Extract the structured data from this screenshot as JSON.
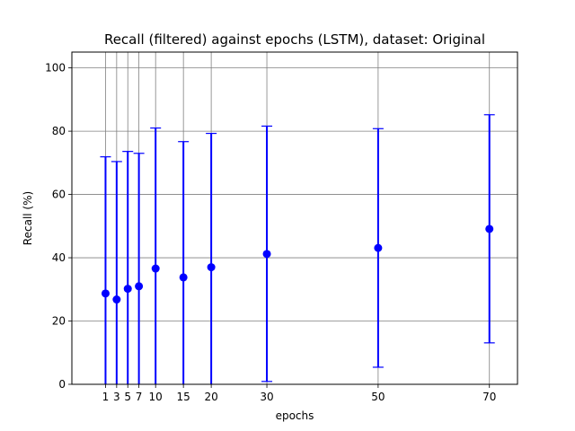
{
  "chart_data": {
    "type": "scatter",
    "title": "Recall (filtered) against epochs (LSTM), dataset: Original",
    "xlabel": "epochs",
    "ylabel": "Recall (%)",
    "xlim": [
      -5.05,
      75.05
    ],
    "ylim": [
      0,
      105
    ],
    "grid": true,
    "xticks": [
      1,
      3,
      5,
      7,
      10,
      15,
      20,
      30,
      50,
      70
    ],
    "yticks": [
      0,
      20,
      40,
      60,
      80,
      100
    ],
    "colors": {
      "marker": "#0000ff",
      "grid": "#808080",
      "axis": "#000000"
    },
    "series": [
      {
        "marker": "circle",
        "x": [
          1,
          3,
          5,
          7,
          10,
          15,
          20,
          30,
          50,
          70
        ],
        "y": [
          28.7,
          26.8,
          30.2,
          31.0,
          36.6,
          33.8,
          37.0,
          41.2,
          43.1,
          49.1
        ],
        "y_lower": [
          0,
          0,
          0,
          0,
          0,
          0,
          0,
          0.9,
          5.4,
          13.1
        ],
        "y_upper": [
          71.9,
          70.4,
          73.6,
          73.0,
          81.0,
          76.7,
          79.3,
          81.6,
          80.8,
          85.2
        ]
      }
    ]
  }
}
